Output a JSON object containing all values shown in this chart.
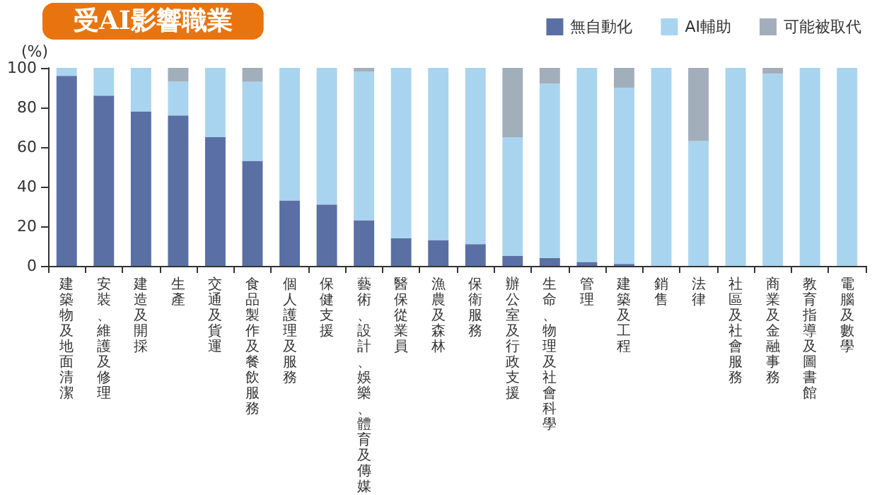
{
  "chart_data": {
    "type": "bar",
    "title": "受AI影響職業",
    "ylabel": "(%)",
    "stacked": true,
    "legend": "top right",
    "categories": [
      "建築物及地面清潔",
      "安裝、維護及修理",
      "建造及開採",
      "生產",
      "交通及貨運",
      "食品製作及餐飲服務",
      "個人護理及服務",
      "保健支援",
      "藝術、設計、娛樂、體育及傳媒",
      "醫保從業員",
      "漁農及森林",
      "保衛服務",
      "辦公室及行政支援",
      "生命、物理及社會科學",
      "管理",
      "建築及工程",
      "銷售",
      "法律",
      "社區及社會服務",
      "商業及金融事務",
      "教育指導及圖書館",
      "電腦及數學"
    ],
    "series": [
      {
        "name": "無自動化",
        "color": "#5a6fa3",
        "values": [
          96,
          86,
          78,
          76,
          65,
          53,
          33,
          31,
          23,
          14,
          13,
          11,
          5,
          4,
          2,
          1,
          0,
          0,
          0,
          0,
          0,
          0
        ]
      },
      {
        "name": "AI輔助",
        "color": "#a9d4ef",
        "values": [
          4,
          14,
          22,
          17,
          35,
          40,
          67,
          69,
          75,
          86,
          87,
          89,
          60,
          88,
          98,
          89,
          100,
          63,
          100,
          97,
          100,
          100
        ]
      },
      {
        "name": "可能被取代",
        "color": "#a3aebb",
        "values": [
          0,
          0,
          0,
          7,
          0,
          7,
          0,
          0,
          2,
          0,
          0,
          0,
          35,
          8,
          0,
          10,
          0,
          37,
          0,
          3,
          0,
          0
        ]
      }
    ],
    "ylim": [
      0,
      100
    ],
    "yticks": [
      0,
      20,
      40,
      60,
      80,
      100
    ]
  }
}
